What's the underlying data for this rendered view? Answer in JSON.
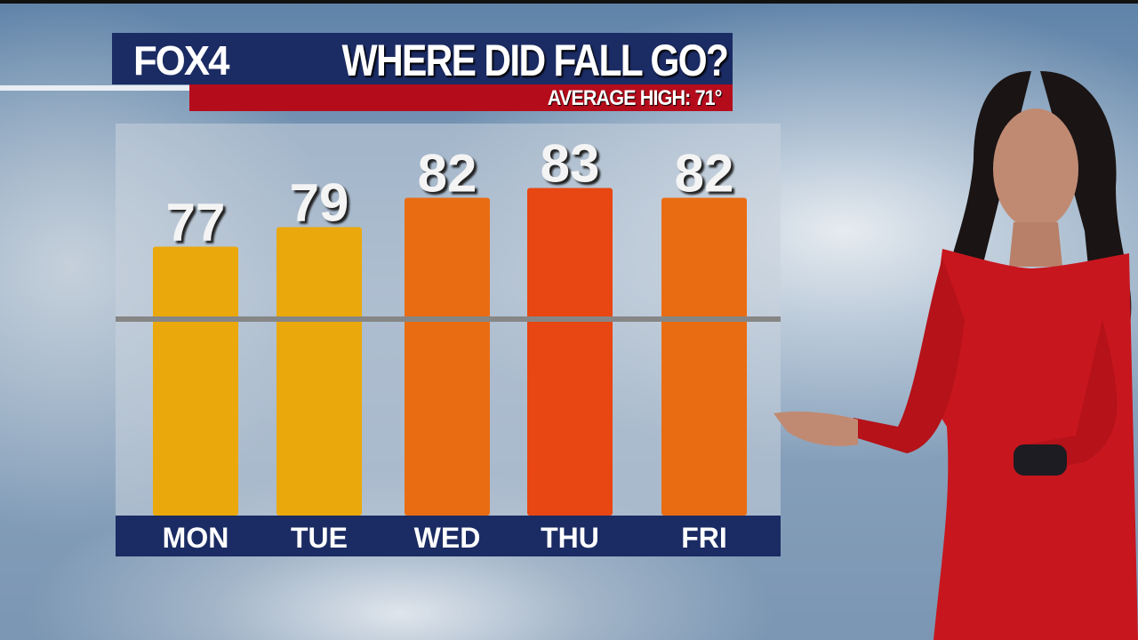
{
  "header": {
    "logo": "FOX4",
    "title": "WHERE DID FALL GO?",
    "subtitle": "AVERAGE HIGH: 71°"
  },
  "colors": {
    "header_bg": "#1b2b63",
    "subtitle_bg": "#b50c1c",
    "day_band": "#1b2b63",
    "average_line": "#868686"
  },
  "chart_data": {
    "type": "bar",
    "title": "WHERE DID FALL GO?",
    "categories": [
      "MON",
      "TUE",
      "WED",
      "THU",
      "FRI"
    ],
    "values": [
      77,
      79,
      82,
      83,
      82
    ],
    "data_labels": [
      "77",
      "79",
      "82",
      "83",
      "82"
    ],
    "bar_colors": [
      "#eaa80c",
      "#eaa80c",
      "#ea6c12",
      "#e84612",
      "#ea6c12"
    ],
    "reference_line": {
      "label": "AVERAGE HIGH: 71°",
      "value": 71
    },
    "ylim": [
      50,
      84
    ],
    "grid": false,
    "legend": "none"
  }
}
